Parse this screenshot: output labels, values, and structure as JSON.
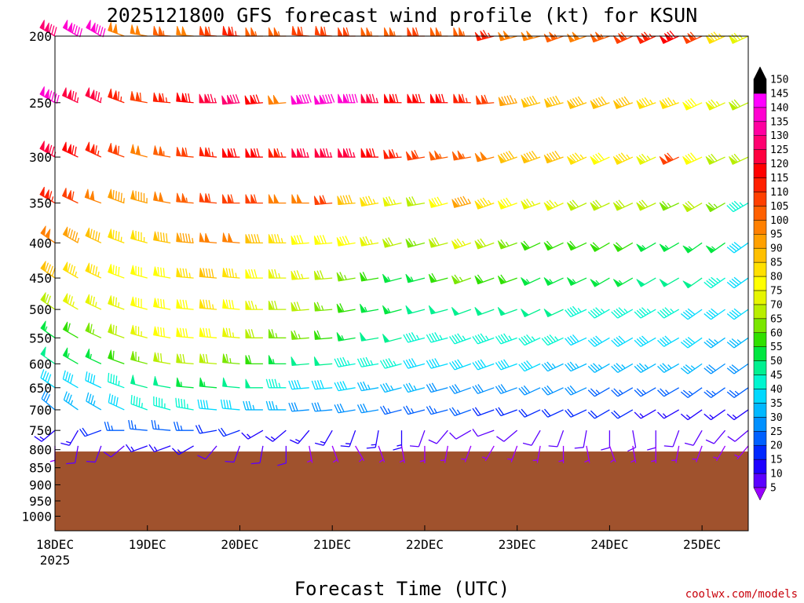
{
  "chart_data": {
    "type": "wind-barb-profile",
    "title": "2025121800 GFS forecast wind profile (kt) for KSUN",
    "xlabel": "Forecast Time (UTC)",
    "credit": "coolwx.com/models",
    "y_axis": {
      "scale": "log",
      "range": [
        1050,
        200
      ],
      "ticks": [
        200,
        250,
        300,
        350,
        400,
        450,
        500,
        550,
        600,
        650,
        700,
        750,
        800,
        850,
        900,
        950,
        1000
      ]
    },
    "x_axis": {
      "range": [
        "2025-12-18T00Z",
        "2025-12-25T12Z"
      ],
      "ticks": [
        "18DEC",
        "19DEC",
        "20DEC",
        "21DEC",
        "22DEC",
        "23DEC",
        "24DEC",
        "25DEC"
      ],
      "first_tick_year": "2025"
    },
    "colorbar": {
      "levels": [
        5,
        10,
        15,
        20,
        25,
        30,
        35,
        40,
        45,
        50,
        55,
        60,
        65,
        70,
        75,
        80,
        85,
        90,
        95,
        100,
        105,
        110,
        115,
        120,
        125,
        130,
        135,
        140,
        145,
        150
      ],
      "colors": [
        "#9900ff",
        "#5c00ff",
        "#1f00ff",
        "#0027ff",
        "#0060ff",
        "#0090ff",
        "#00b8ff",
        "#00d9ff",
        "#00f5d0",
        "#00f090",
        "#00e640",
        "#30e000",
        "#7ae600",
        "#b8ee00",
        "#e6f500",
        "#ffff00",
        "#ffe000",
        "#ffc000",
        "#ffa000",
        "#ff8000",
        "#ff6000",
        "#ff4000",
        "#ff2000",
        "#ff0000",
        "#ff0040",
        "#ff0070",
        "#ff00a0",
        "#ff00d0",
        "#ff00ff",
        "#000000"
      ]
    },
    "terrain": {
      "color": "#a0522d",
      "surface_pressure_hpa": 805
    },
    "barb_times_hours": [
      0,
      6,
      12,
      18,
      24,
      30,
      36,
      42,
      48,
      54,
      60,
      66,
      72,
      78,
      84,
      90,
      96,
      102,
      108,
      114,
      120,
      126,
      132,
      138,
      144,
      150,
      156,
      162,
      168,
      174,
      180
    ],
    "levels": [
      {
        "p": 200,
        "speed": [
          130,
          140,
          140,
          100,
          100,
          105,
          100,
          110,
          115,
          105,
          105,
          110,
          110,
          110,
          105,
          105,
          110,
          105,
          105,
          115,
          100,
          100,
          105,
          100,
          105,
          110,
          115,
          120,
          110,
          85,
          75
        ],
        "dir": [
          300,
          300,
          300,
          290,
          280,
          275,
          275,
          275,
          275,
          270,
          270,
          275,
          275,
          270,
          270,
          270,
          270,
          270,
          270,
          255,
          255,
          255,
          250,
          250,
          250,
          245,
          245,
          245,
          245,
          245,
          245
        ]
      },
      {
        "p": 250,
        "speed": [
          140,
          125,
          125,
          115,
          110,
          115,
          120,
          125,
          130,
          120,
          100,
          140,
          140,
          140,
          125,
          120,
          120,
          120,
          115,
          110,
          95,
          90,
          90,
          90,
          90,
          90,
          85,
          85,
          80,
          75,
          70
        ],
        "dir": [
          300,
          295,
          295,
          290,
          280,
          275,
          275,
          270,
          265,
          265,
          265,
          265,
          265,
          270,
          270,
          270,
          270,
          270,
          270,
          265,
          260,
          255,
          255,
          250,
          250,
          250,
          250,
          250,
          245,
          245,
          245
        ]
      },
      {
        "p": 300,
        "speed": [
          125,
          120,
          115,
          110,
          100,
          105,
          110,
          115,
          120,
          120,
          115,
          125,
          125,
          125,
          120,
          115,
          110,
          105,
          105,
          100,
          90,
          90,
          90,
          85,
          80,
          85,
          75,
          110,
          80,
          70,
          70
        ],
        "dir": [
          300,
          295,
          295,
          290,
          285,
          280,
          275,
          275,
          270,
          270,
          270,
          270,
          270,
          270,
          270,
          265,
          260,
          260,
          260,
          255,
          250,
          250,
          250,
          245,
          245,
          245,
          245,
          245,
          245,
          245,
          245
        ]
      },
      {
        "p": 350,
        "speed": [
          115,
          110,
          100,
          95,
          95,
          100,
          105,
          110,
          110,
          110,
          100,
          100,
          110,
          90,
          85,
          75,
          70,
          80,
          95,
          85,
          80,
          75,
          75,
          70,
          70,
          70,
          70,
          65,
          70,
          65,
          45
        ],
        "dir": [
          300,
          295,
          290,
          290,
          285,
          280,
          275,
          275,
          270,
          270,
          270,
          270,
          265,
          265,
          260,
          260,
          260,
          255,
          255,
          250,
          250,
          250,
          245,
          245,
          245,
          245,
          245,
          245,
          240,
          240,
          240
        ]
      },
      {
        "p": 400,
        "speed": [
          100,
          95,
          90,
          85,
          85,
          90,
          95,
          100,
          100,
          90,
          85,
          80,
          80,
          80,
          75,
          70,
          65,
          70,
          75,
          70,
          65,
          60,
          60,
          60,
          60,
          60,
          55,
          55,
          55,
          55,
          40
        ],
        "dir": [
          305,
          300,
          295,
          290,
          285,
          280,
          275,
          275,
          275,
          270,
          270,
          265,
          265,
          260,
          260,
          255,
          255,
          255,
          250,
          250,
          250,
          245,
          245,
          245,
          240,
          240,
          240,
          240,
          235,
          235,
          235
        ]
      },
      {
        "p": 450,
        "speed": [
          90,
          85,
          85,
          80,
          80,
          80,
          85,
          90,
          85,
          80,
          75,
          75,
          70,
          65,
          60,
          55,
          55,
          60,
          65,
          60,
          60,
          55,
          55,
          55,
          55,
          55,
          50,
          50,
          50,
          45,
          40
        ],
        "dir": [
          305,
          300,
          295,
          290,
          285,
          280,
          275,
          275,
          275,
          270,
          270,
          265,
          265,
          260,
          260,
          255,
          255,
          255,
          250,
          250,
          250,
          245,
          245,
          245,
          240,
          240,
          240,
          240,
          235,
          235,
          235
        ]
      },
      {
        "p": 500,
        "speed": [
          70,
          75,
          75,
          75,
          80,
          80,
          80,
          85,
          80,
          75,
          70,
          70,
          65,
          60,
          55,
          55,
          50,
          50,
          50,
          50,
          50,
          50,
          50,
          45,
          45,
          45,
          45,
          45,
          40,
          40,
          40
        ],
        "dir": [
          305,
          300,
          295,
          290,
          285,
          280,
          275,
          275,
          275,
          270,
          270,
          265,
          265,
          260,
          260,
          255,
          255,
          255,
          250,
          250,
          250,
          245,
          245,
          245,
          240,
          240,
          240,
          240,
          235,
          235,
          235
        ]
      },
      {
        "p": 550,
        "speed": [
          55,
          60,
          65,
          70,
          75,
          80,
          80,
          80,
          75,
          70,
          65,
          65,
          60,
          55,
          50,
          50,
          45,
          45,
          45,
          45,
          45,
          45,
          45,
          40,
          40,
          40,
          40,
          40,
          40,
          35,
          35
        ],
        "dir": [
          305,
          300,
          295,
          290,
          285,
          280,
          275,
          275,
          275,
          270,
          270,
          265,
          265,
          260,
          260,
          255,
          255,
          255,
          250,
          250,
          250,
          245,
          245,
          245,
          240,
          240,
          240,
          240,
          235,
          235,
          235
        ]
      },
      {
        "p": 600,
        "speed": [
          50,
          55,
          55,
          60,
          65,
          70,
          70,
          70,
          65,
          60,
          55,
          50,
          50,
          45,
          45,
          45,
          40,
          40,
          40,
          40,
          40,
          40,
          35,
          35,
          35,
          35,
          35,
          35,
          35,
          30,
          30
        ],
        "dir": [
          305,
          300,
          295,
          290,
          285,
          280,
          275,
          275,
          275,
          270,
          270,
          265,
          265,
          260,
          260,
          255,
          255,
          255,
          250,
          250,
          250,
          245,
          245,
          245,
          240,
          240,
          240,
          240,
          235,
          235,
          235
        ]
      },
      {
        "p": 650,
        "speed": [
          40,
          40,
          40,
          45,
          50,
          50,
          55,
          55,
          50,
          50,
          45,
          40,
          40,
          40,
          35,
          35,
          35,
          30,
          30,
          30,
          30,
          30,
          30,
          30,
          25,
          25,
          25,
          25,
          25,
          25,
          25
        ],
        "dir": [
          305,
          300,
          295,
          290,
          285,
          280,
          275,
          275,
          275,
          270,
          270,
          265,
          265,
          260,
          260,
          255,
          255,
          255,
          250,
          250,
          250,
          245,
          245,
          245,
          240,
          240,
          240,
          240,
          235,
          235,
          235
        ]
      },
      {
        "p": 700,
        "speed": [
          30,
          35,
          35,
          40,
          45,
          45,
          45,
          40,
          40,
          35,
          35,
          30,
          30,
          30,
          30,
          25,
          25,
          25,
          25,
          20,
          20,
          20,
          20,
          20,
          20,
          20,
          15,
          15,
          15,
          15,
          15
        ],
        "dir": [
          310,
          305,
          300,
          295,
          290,
          285,
          280,
          275,
          275,
          270,
          270,
          265,
          265,
          260,
          260,
          255,
          255,
          255,
          250,
          250,
          250,
          245,
          245,
          245,
          240,
          240,
          240,
          240,
          235,
          235,
          235
        ]
      },
      {
        "p": 750,
        "speed": [
          15,
          15,
          20,
          25,
          25,
          25,
          25,
          20,
          20,
          15,
          15,
          15,
          15,
          15,
          15,
          15,
          10,
          10,
          10,
          10,
          10,
          10,
          10,
          10,
          10,
          10,
          10,
          10,
          10,
          10,
          10
        ],
        "dir": [
          230,
          210,
          250,
          270,
          275,
          275,
          270,
          260,
          250,
          240,
          230,
          220,
          210,
          200,
          190,
          180,
          200,
          220,
          240,
          250,
          230,
          210,
          200,
          190,
          180,
          170,
          180,
          200,
          210,
          220,
          230
        ]
      },
      {
        "p": 790,
        "speed": [
          5,
          10,
          10,
          10,
          15,
          15,
          15,
          10,
          10,
          10,
          10,
          5,
          5,
          5,
          5,
          5,
          5,
          5,
          5,
          5,
          5,
          5,
          5,
          5,
          5,
          5,
          5,
          5,
          5,
          5,
          5
        ],
        "dir": [
          180,
          190,
          200,
          230,
          250,
          250,
          240,
          220,
          200,
          190,
          180,
          170,
          160,
          150,
          160,
          170,
          180,
          190,
          200,
          210,
          200,
          190,
          180,
          170,
          160,
          170,
          180,
          190,
          200,
          210,
          220
        ]
      }
    ]
  }
}
